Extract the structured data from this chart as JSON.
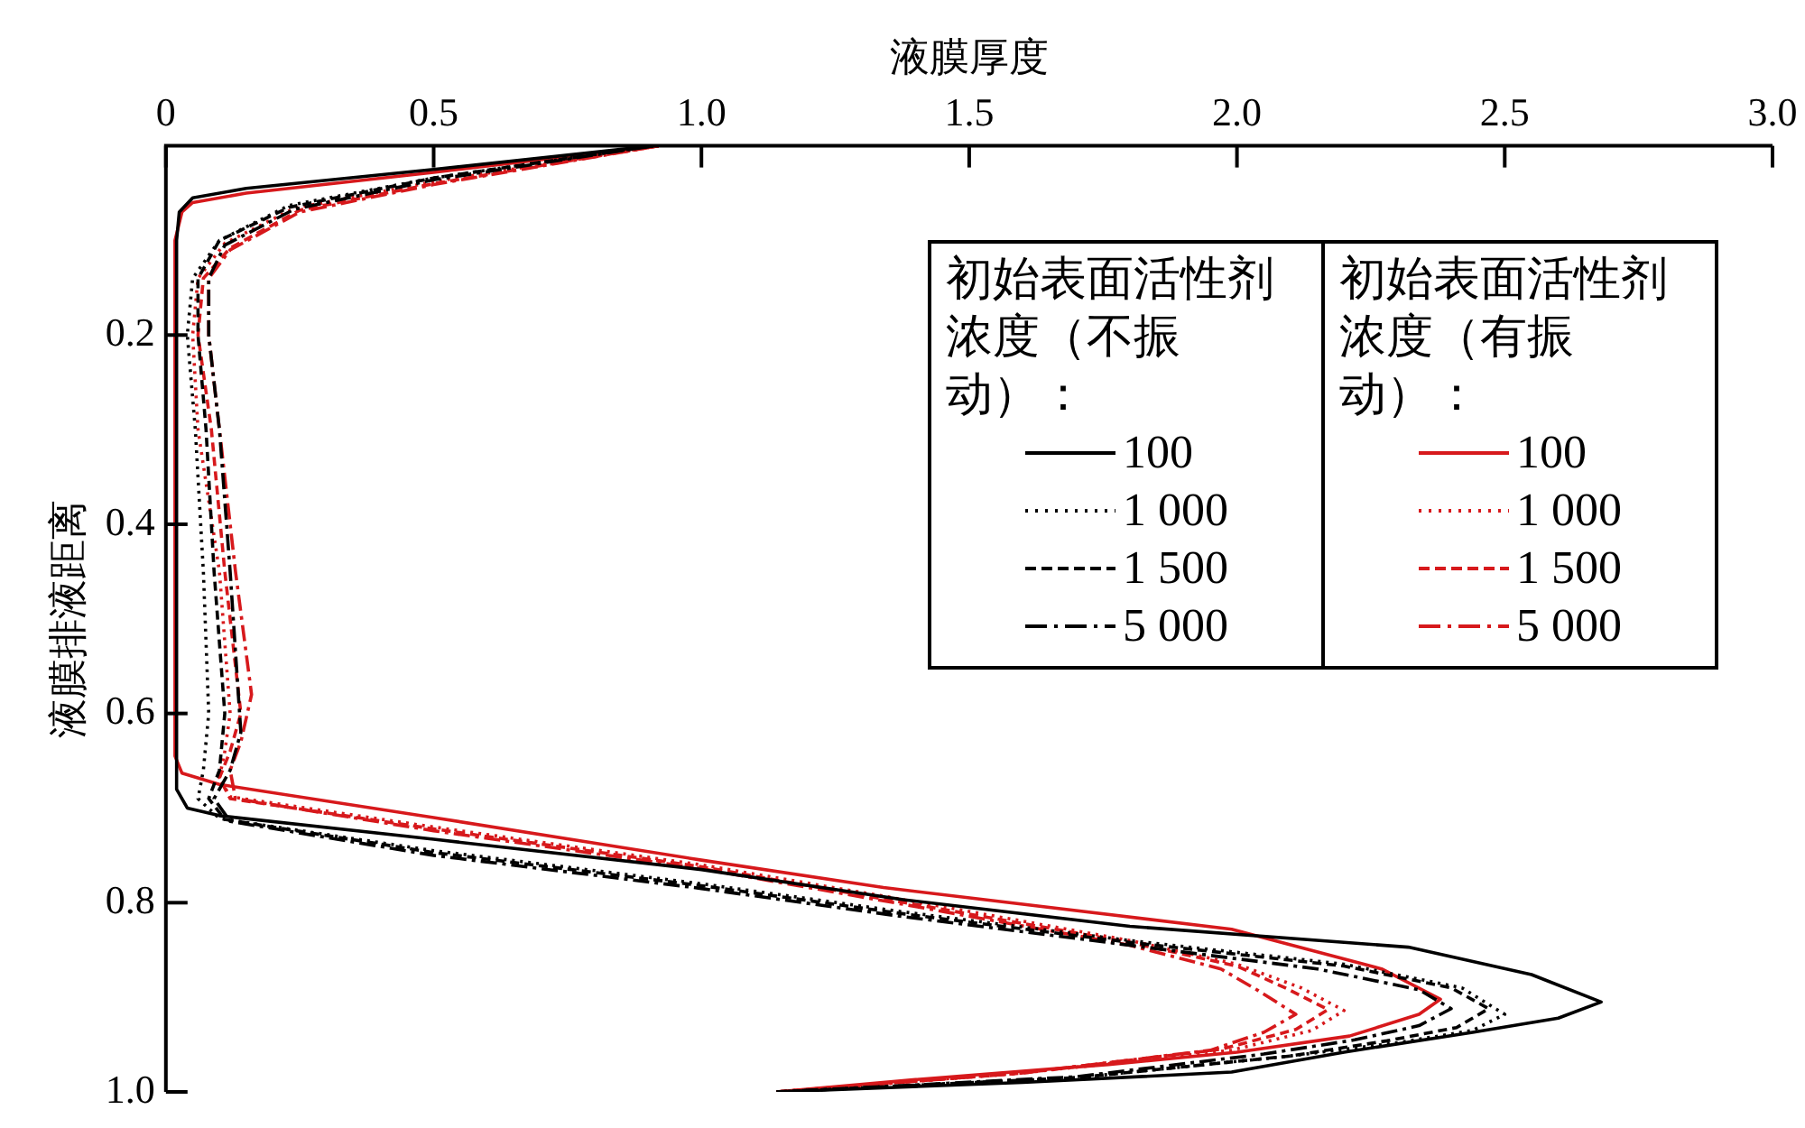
{
  "chart_data": {
    "type": "line",
    "xlabel": "液膜厚度",
    "ylabel": "液膜排液距离",
    "legend_title": "初始表面活性剂浓度（不振动）：",
    "annotations": [
      "初始表面活性剂浓度（有振动）："
    ],
    "xlim": [
      0,
      3
    ],
    "xticks": [
      0,
      0.5,
      {
        "value": 1,
        "label": "1.0"
      },
      1.5,
      {
        "value": 2,
        "label": "2.0"
      },
      2.5,
      {
        "value": 3,
        "label": "3.0"
      }
    ],
    "ylim": [
      1,
      0
    ],
    "yticks": [
      0.2,
      0.4,
      0.6,
      0.8,
      {
        "value": 1,
        "label": "1.0"
      }
    ],
    "grid": false,
    "legend": "top right",
    "marker": "none",
    "series": [
      {
        "name": "100",
        "color": "#000000",
        "line_style": "solid",
        "x": [
          0.91,
          0.5,
          0.15,
          0.05,
          0.025,
          0.02,
          0.02,
          0.04,
          0.1,
          0.5,
          1.0,
          1.38,
          1.8,
          2.32,
          2.55,
          2.68,
          2.6,
          2.44,
          2.2,
          1.99,
          1.6,
          1.14
        ],
        "values": [
          0,
          0.025,
          0.045,
          0.055,
          0.07,
          0.1,
          0.68,
          0.7,
          0.708,
          0.733,
          0.765,
          0.797,
          0.825,
          0.847,
          0.876,
          0.905,
          0.922,
          0.937,
          0.958,
          0.979,
          0.99,
          1.0
        ]
      },
      {
        "name": "1 000",
        "color": "#000000",
        "line_style": "dotted",
        "x": [
          0.91,
          0.5,
          0.23,
          0.1,
          0.05,
          0.04,
          0.055,
          0.07,
          0.08,
          0.07,
          0.06,
          0.1,
          0.5,
          1.0,
          1.38,
          1.8,
          2.2,
          2.42,
          2.5,
          2.44,
          2.3,
          2.1,
          1.7,
          1.14
        ],
        "values": [
          0,
          0.034,
          0.063,
          0.1,
          0.14,
          0.2,
          0.3,
          0.45,
          0.6,
          0.66,
          0.69,
          0.711,
          0.745,
          0.78,
          0.81,
          0.84,
          0.865,
          0.89,
          0.918,
          0.935,
          0.948,
          0.962,
          0.985,
          1.0
        ]
      },
      {
        "name": "1 500",
        "color": "#000000",
        "line_style": "dashed",
        "x": [
          0.91,
          0.5,
          0.23,
          0.1,
          0.06,
          0.06,
          0.075,
          0.09,
          0.11,
          0.1,
          0.08,
          0.11,
          0.5,
          1.0,
          1.38,
          1.8,
          2.2,
          2.4,
          2.47,
          2.41,
          2.28,
          2.1,
          1.7,
          1.14
        ],
        "values": [
          0,
          0.034,
          0.065,
          0.1,
          0.14,
          0.2,
          0.3,
          0.45,
          0.6,
          0.66,
          0.69,
          0.712,
          0.747,
          0.782,
          0.812,
          0.842,
          0.867,
          0.89,
          0.912,
          0.932,
          0.946,
          0.962,
          0.985,
          1.0
        ]
      },
      {
        "name": "5 000",
        "color": "#000000",
        "line_style": "dashdot",
        "x": [
          0.91,
          0.5,
          0.24,
          0.11,
          0.08,
          0.08,
          0.1,
          0.12,
          0.14,
          0.12,
          0.09,
          0.12,
          0.5,
          1.0,
          1.38,
          1.8,
          2.15,
          2.34,
          2.4,
          2.34,
          2.22,
          2.05,
          1.7,
          1.14
        ],
        "values": [
          0,
          0.036,
          0.067,
          0.105,
          0.14,
          0.2,
          0.3,
          0.45,
          0.62,
          0.66,
          0.69,
          0.714,
          0.75,
          0.785,
          0.815,
          0.845,
          0.87,
          0.892,
          0.912,
          0.93,
          0.945,
          0.96,
          0.984,
          1.0
        ]
      },
      {
        "name": "100",
        "color": "#d7191c",
        "line_style": "solid",
        "x": [
          0.92,
          0.5,
          0.15,
          0.05,
          0.03,
          0.017,
          0.017,
          0.03,
          0.1,
          0.5,
          1.0,
          1.34,
          1.99,
          2.27,
          2.38,
          2.34,
          2.21,
          2.0,
          1.76,
          1.4,
          1.14
        ],
        "values": [
          0,
          0.028,
          0.05,
          0.06,
          0.07,
          0.1,
          0.645,
          0.663,
          0.675,
          0.71,
          0.755,
          0.784,
          0.828,
          0.87,
          0.902,
          0.918,
          0.941,
          0.958,
          0.971,
          0.987,
          1.0
        ]
      },
      {
        "name": "1 000",
        "color": "#d7191c",
        "line_style": "dotted",
        "x": [
          0.92,
          0.5,
          0.24,
          0.11,
          0.06,
          0.05,
          0.06,
          0.1,
          0.12,
          0.11,
          0.1,
          0.12,
          0.5,
          1.0,
          1.38,
          1.8,
          2.0,
          2.12,
          2.2,
          2.14,
          1.99,
          1.6,
          1.14
        ],
        "values": [
          0,
          0.038,
          0.066,
          0.103,
          0.14,
          0.2,
          0.3,
          0.45,
          0.6,
          0.64,
          0.668,
          0.688,
          0.72,
          0.76,
          0.797,
          0.84,
          0.865,
          0.89,
          0.914,
          0.935,
          0.956,
          0.98,
          1.0
        ]
      },
      {
        "name": "1 500",
        "color": "#d7191c",
        "line_style": "dashed",
        "x": [
          0.92,
          0.5,
          0.25,
          0.12,
          0.07,
          0.06,
          0.085,
          0.11,
          0.14,
          0.12,
          0.1,
          0.12,
          0.5,
          1.0,
          1.38,
          1.8,
          2.0,
          2.09,
          2.17,
          2.11,
          1.97,
          1.6,
          1.14
        ],
        "values": [
          0,
          0.04,
          0.068,
          0.108,
          0.14,
          0.2,
          0.3,
          0.45,
          0.6,
          0.64,
          0.668,
          0.69,
          0.722,
          0.762,
          0.8,
          0.842,
          0.867,
          0.89,
          0.913,
          0.934,
          0.955,
          0.98,
          1.0
        ]
      },
      {
        "name": "5 000",
        "color": "#d7191c",
        "line_style": "dashdot",
        "x": [
          0.92,
          0.5,
          0.25,
          0.12,
          0.08,
          0.08,
          0.1,
          0.13,
          0.16,
          0.14,
          0.12,
          0.13,
          0.5,
          1.0,
          1.38,
          1.8,
          1.97,
          2.04,
          2.11,
          2.05,
          1.95,
          1.6,
          1.14
        ],
        "values": [
          0,
          0.041,
          0.07,
          0.11,
          0.14,
          0.2,
          0.3,
          0.45,
          0.58,
          0.63,
          0.66,
          0.69,
          0.724,
          0.764,
          0.802,
          0.845,
          0.87,
          0.893,
          0.918,
          0.937,
          0.956,
          0.98,
          1.0
        ]
      }
    ]
  }
}
